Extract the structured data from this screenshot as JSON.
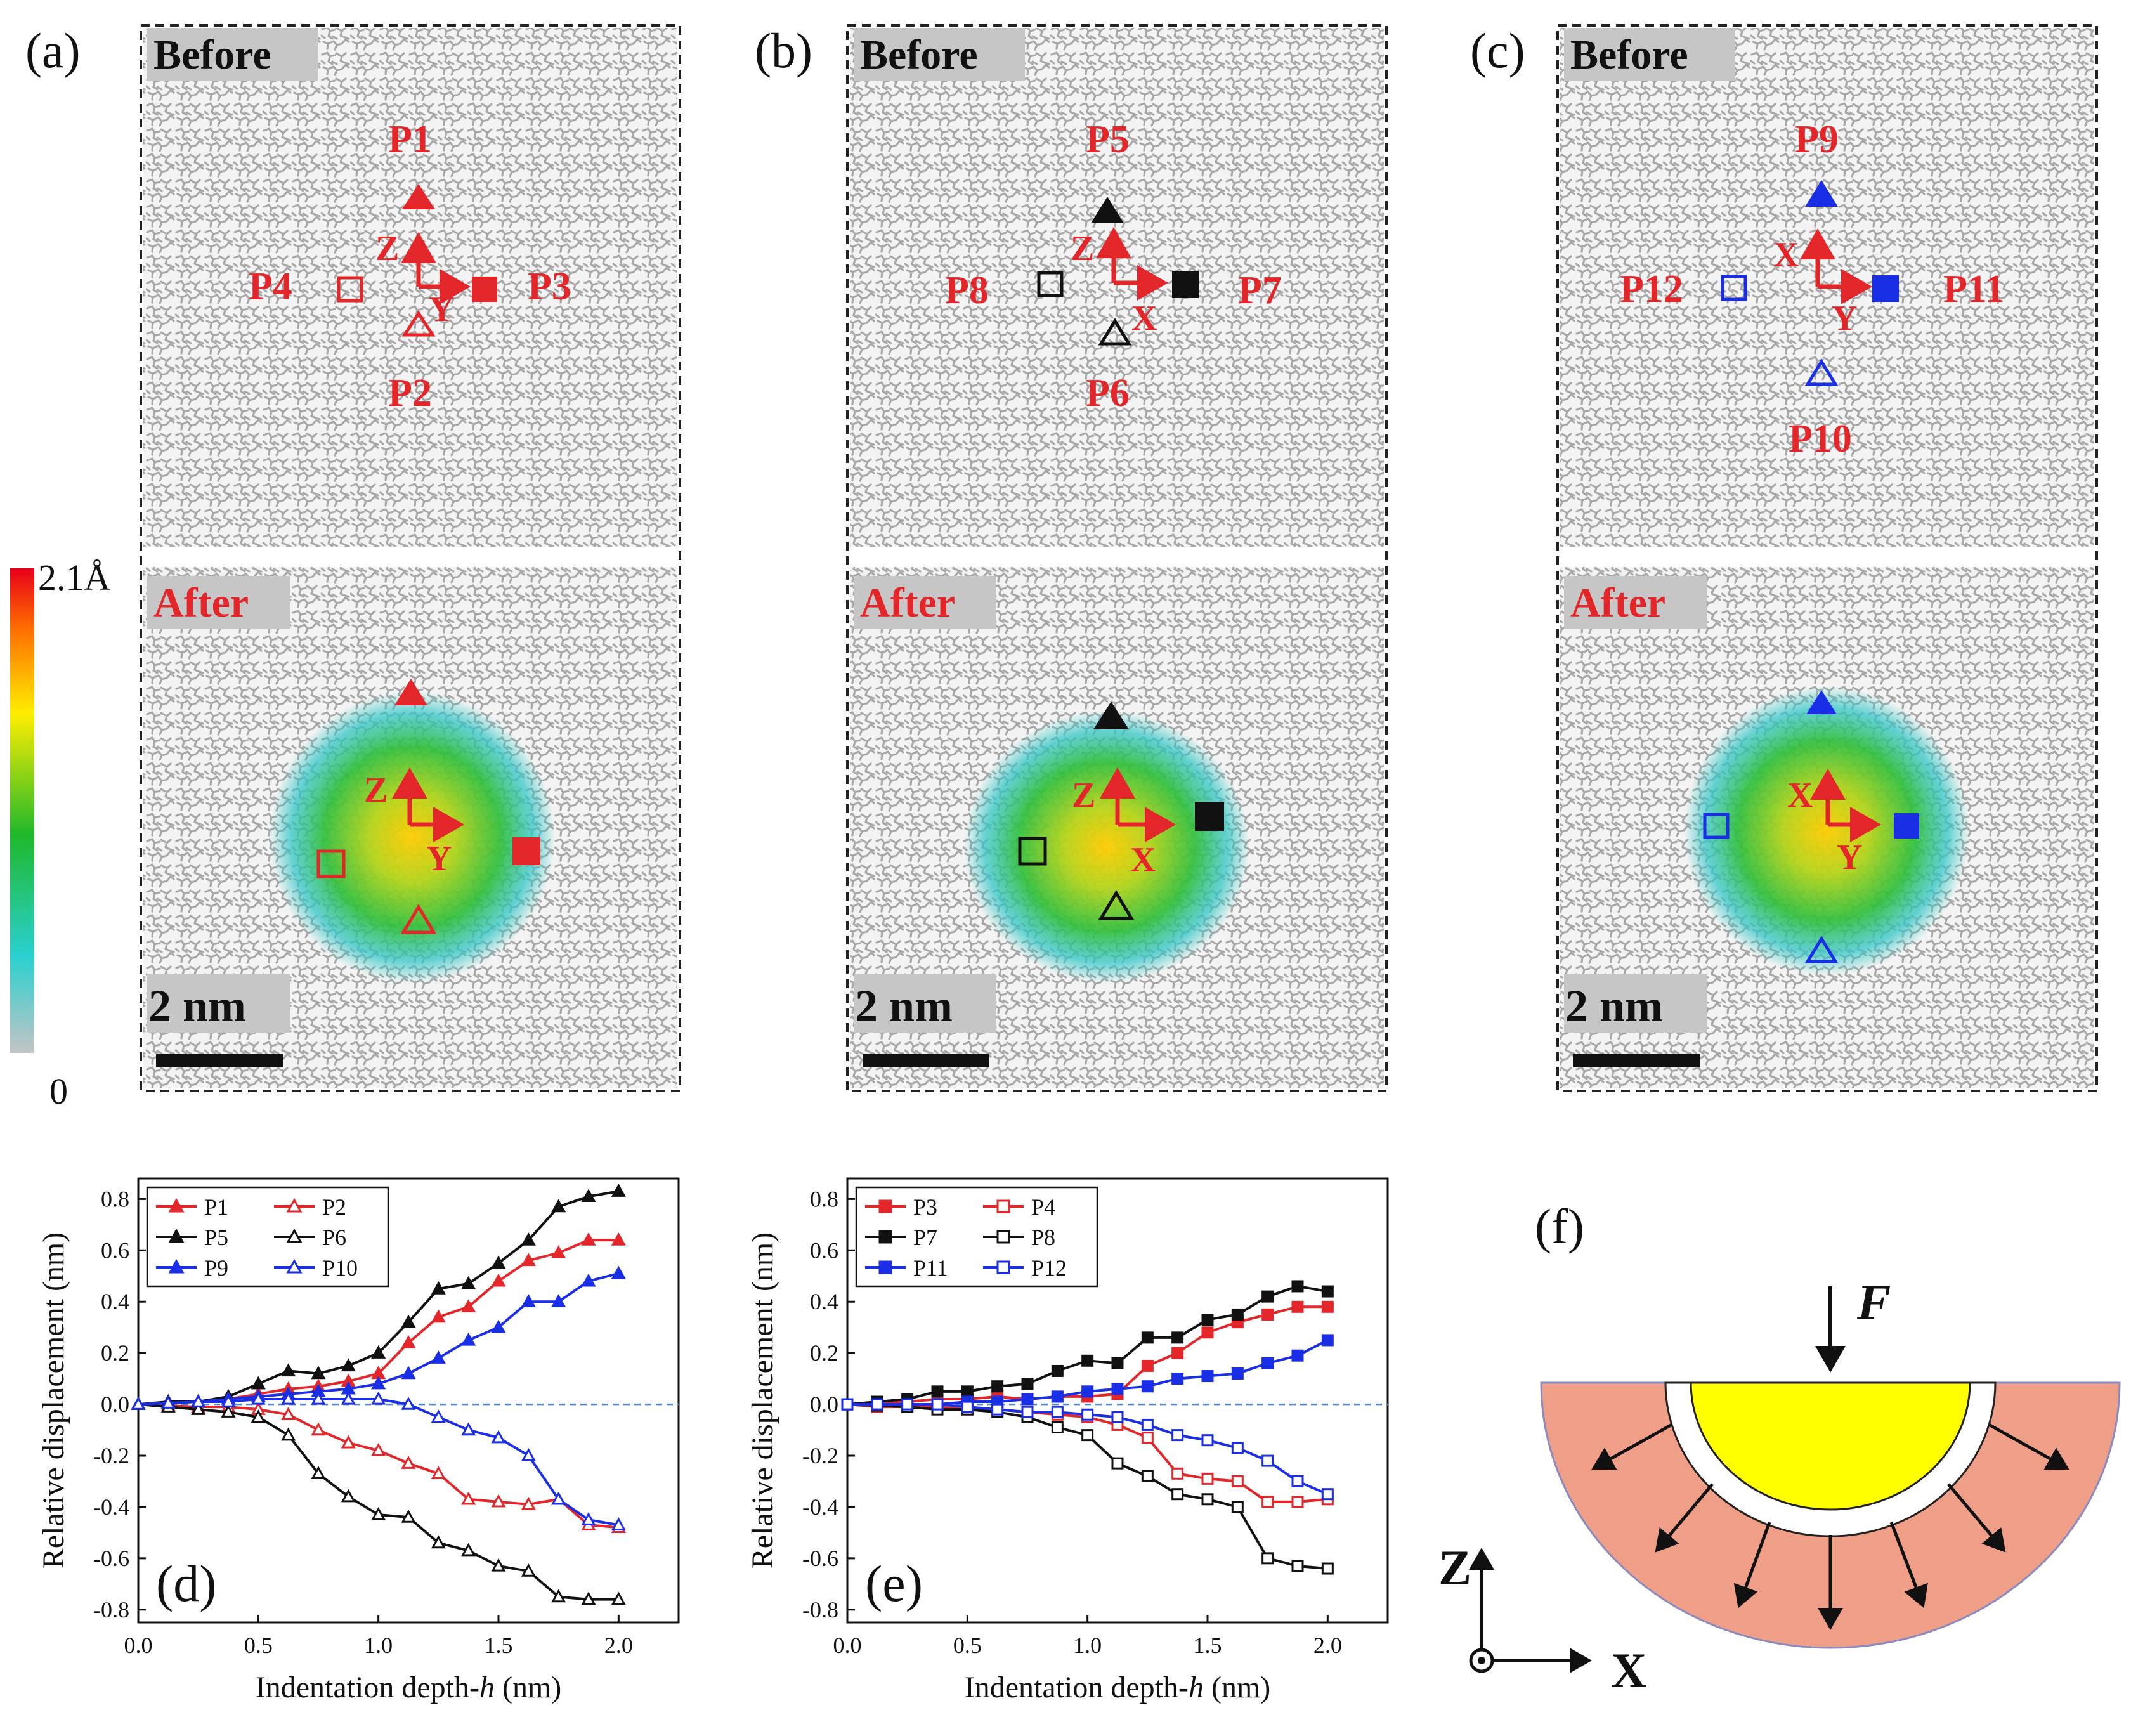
{
  "panels": {
    "a": {
      "label": "(a)",
      "before": "Before",
      "after": "After",
      "scale": "2 nm",
      "axes_before": [
        "Z",
        "Y"
      ],
      "axes_after": [
        "Z",
        "Y"
      ],
      "points": [
        "P1",
        "P2",
        "P3",
        "P4"
      ],
      "color": "#e3262a"
    },
    "b": {
      "label": "(b)",
      "before": "Before",
      "after": "After",
      "scale": "2 nm",
      "axes_before": [
        "Z",
        "X"
      ],
      "axes_after": [
        "Z",
        "X"
      ],
      "points": [
        "P5",
        "P6",
        "P7",
        "P8"
      ],
      "color": "#111111"
    },
    "c": {
      "label": "(c)",
      "before": "Before",
      "after": "After",
      "scale": "2 nm",
      "axes_before": [
        "X",
        "Y"
      ],
      "axes_after": [
        "X",
        "Y"
      ],
      "points": [
        "P9",
        "P10",
        "P11",
        "P12"
      ],
      "color": "#1a2ee6"
    },
    "f": {
      "label": "(f)",
      "force": "F",
      "axis_z": "Z",
      "axis_x": "X",
      "colors": {
        "shell": "#ef9f87",
        "core": "#ffff00"
      }
    }
  },
  "colorbar": {
    "max_label": "2.1Å",
    "min_label": "0"
  },
  "chart_data": [
    {
      "id": "d",
      "type": "line",
      "panel_label": "(d)",
      "xlabel": "Indentation depth-",
      "xlabel_var": "h",
      "xlabel_unit": " (nm)",
      "ylabel": "Relative displacement (nm)",
      "xlim": [
        0,
        2.25
      ],
      "ylim": [
        -0.85,
        0.88
      ],
      "xticks": [
        "0.0",
        "0.5",
        "1.0",
        "1.5",
        "2.0"
      ],
      "xtick_values": [
        0,
        0.5,
        1.0,
        1.5,
        2.0
      ],
      "yticks": [
        "0.8",
        "0.6",
        "0.4",
        "0.2",
        "0.0",
        "-0.2",
        "-0.4",
        "-0.6",
        "-0.8"
      ],
      "ytick_values": [
        0.8,
        0.6,
        0.4,
        0.2,
        0.0,
        -0.2,
        -0.4,
        -0.6,
        -0.8
      ],
      "x": [
        0,
        0.125,
        0.25,
        0.375,
        0.5,
        0.625,
        0.75,
        0.875,
        1.0,
        1.125,
        1.25,
        1.375,
        1.5,
        1.625,
        1.75,
        1.875,
        2.0
      ],
      "series": [
        {
          "name": "P1",
          "color": "#e3262a",
          "marker": "triangle",
          "filled": true,
          "values": [
            0,
            0.005,
            0.01,
            0.02,
            0.04,
            0.06,
            0.07,
            0.09,
            0.12,
            0.24,
            0.34,
            0.38,
            0.48,
            0.56,
            0.59,
            0.64,
            0.64
          ]
        },
        {
          "name": "P2",
          "color": "#e3262a",
          "marker": "triangle",
          "filled": false,
          "values": [
            0,
            -0.005,
            -0.01,
            -0.01,
            -0.02,
            -0.04,
            -0.1,
            -0.15,
            -0.18,
            -0.23,
            -0.27,
            -0.37,
            -0.38,
            -0.39,
            -0.37,
            -0.47,
            -0.48
          ]
        },
        {
          "name": "P5",
          "color": "#111111",
          "marker": "triangle",
          "filled": true,
          "values": [
            0,
            0.01,
            0.01,
            0.03,
            0.08,
            0.13,
            0.12,
            0.15,
            0.2,
            0.32,
            0.45,
            0.47,
            0.55,
            0.64,
            0.77,
            0.81,
            0.83
          ]
        },
        {
          "name": "P6",
          "color": "#111111",
          "marker": "triangle",
          "filled": false,
          "values": [
            0,
            -0.01,
            -0.02,
            -0.03,
            -0.05,
            -0.12,
            -0.27,
            -0.36,
            -0.43,
            -0.44,
            -0.54,
            -0.57,
            -0.63,
            -0.65,
            -0.75,
            -0.76,
            -0.76
          ]
        },
        {
          "name": "P9",
          "color": "#1a2ee6",
          "marker": "triangle",
          "filled": true,
          "values": [
            0,
            0.005,
            0.01,
            0.02,
            0.03,
            0.04,
            0.05,
            0.06,
            0.08,
            0.12,
            0.18,
            0.25,
            0.3,
            0.4,
            0.4,
            0.48,
            0.51
          ]
        },
        {
          "name": "P10",
          "color": "#1a2ee6",
          "marker": "triangle",
          "filled": false,
          "values": [
            0,
            0.005,
            0.01,
            0.01,
            0.02,
            0.02,
            0.02,
            0.02,
            0.02,
            0.0,
            -0.05,
            -0.1,
            -0.13,
            -0.2,
            -0.37,
            -0.45,
            -0.47
          ]
        }
      ]
    },
    {
      "id": "e",
      "type": "line",
      "panel_label": "(e)",
      "xlabel": "Indentation depth-",
      "xlabel_var": "h",
      "xlabel_unit": " (nm)",
      "ylabel": "Relative displacement (nm)",
      "xlim": [
        0,
        2.25
      ],
      "ylim": [
        -0.85,
        0.88
      ],
      "xticks": [
        "0.0",
        "0.5",
        "1.0",
        "1.5",
        "2.0"
      ],
      "xtick_values": [
        0,
        0.5,
        1.0,
        1.5,
        2.0
      ],
      "yticks": [
        "0.8",
        "0.6",
        "0.4",
        "0.2",
        "0.0",
        "-0.2",
        "-0.4",
        "-0.6",
        "-0.8"
      ],
      "ytick_values": [
        0.8,
        0.6,
        0.4,
        0.2,
        0.0,
        -0.2,
        -0.4,
        -0.6,
        -0.8
      ],
      "x": [
        0,
        0.125,
        0.25,
        0.375,
        0.5,
        0.625,
        0.75,
        0.875,
        1.0,
        1.125,
        1.25,
        1.375,
        1.5,
        1.625,
        1.75,
        1.875,
        2.0
      ],
      "series": [
        {
          "name": "P3",
          "color": "#e3262a",
          "marker": "square",
          "filled": true,
          "values": [
            0,
            0.0,
            0.01,
            0.02,
            0.02,
            0.03,
            0.02,
            0.03,
            0.03,
            0.04,
            0.15,
            0.2,
            0.28,
            0.32,
            0.35,
            0.38,
            0.38
          ]
        },
        {
          "name": "P4",
          "color": "#e3262a",
          "marker": "square",
          "filled": false,
          "values": [
            0,
            -0.01,
            -0.01,
            -0.01,
            -0.02,
            -0.02,
            -0.03,
            -0.04,
            -0.05,
            -0.08,
            -0.13,
            -0.27,
            -0.29,
            -0.3,
            -0.38,
            -0.38,
            -0.37
          ]
        },
        {
          "name": "P7",
          "color": "#111111",
          "marker": "square",
          "filled": true,
          "values": [
            0,
            0.01,
            0.02,
            0.05,
            0.05,
            0.07,
            0.08,
            0.13,
            0.17,
            0.16,
            0.26,
            0.26,
            0.33,
            0.35,
            0.42,
            0.46,
            0.44
          ]
        },
        {
          "name": "P8",
          "color": "#111111",
          "marker": "square",
          "filled": false,
          "values": [
            0,
            -0.005,
            -0.01,
            -0.02,
            -0.02,
            -0.03,
            -0.05,
            -0.09,
            -0.12,
            -0.23,
            -0.28,
            -0.35,
            -0.37,
            -0.4,
            -0.6,
            -0.63,
            -0.64
          ]
        },
        {
          "name": "P11",
          "color": "#1a2ee6",
          "marker": "square",
          "filled": true,
          "values": [
            0,
            0.0,
            0.0,
            0.0,
            0.01,
            0.01,
            0.02,
            0.03,
            0.05,
            0.06,
            0.07,
            0.1,
            0.11,
            0.12,
            0.16,
            0.19,
            0.25
          ]
        },
        {
          "name": "P12",
          "color": "#1a2ee6",
          "marker": "square",
          "filled": false,
          "values": [
            0,
            0.0,
            0.0,
            0.0,
            -0.01,
            -0.02,
            -0.03,
            -0.03,
            -0.04,
            -0.05,
            -0.08,
            -0.12,
            -0.14,
            -0.17,
            -0.22,
            -0.3,
            -0.35
          ]
        }
      ]
    }
  ]
}
